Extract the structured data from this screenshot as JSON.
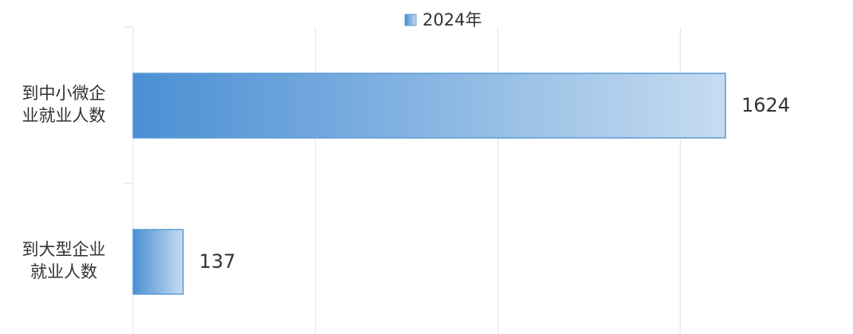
{
  "chart_data": {
    "type": "bar",
    "orientation": "horizontal",
    "categories": [
      "到中小微企\n业就业人数",
      "到大型企业\n就业人数"
    ],
    "series": [
      {
        "name": "2024年",
        "color": "#5b9bd5",
        "values": [
          1624,
          137
        ]
      }
    ],
    "xlim": [
      0,
      1800
    ],
    "xticks": [
      0,
      500,
      1000,
      1500
    ],
    "grid": true,
    "legend": "top"
  }
}
